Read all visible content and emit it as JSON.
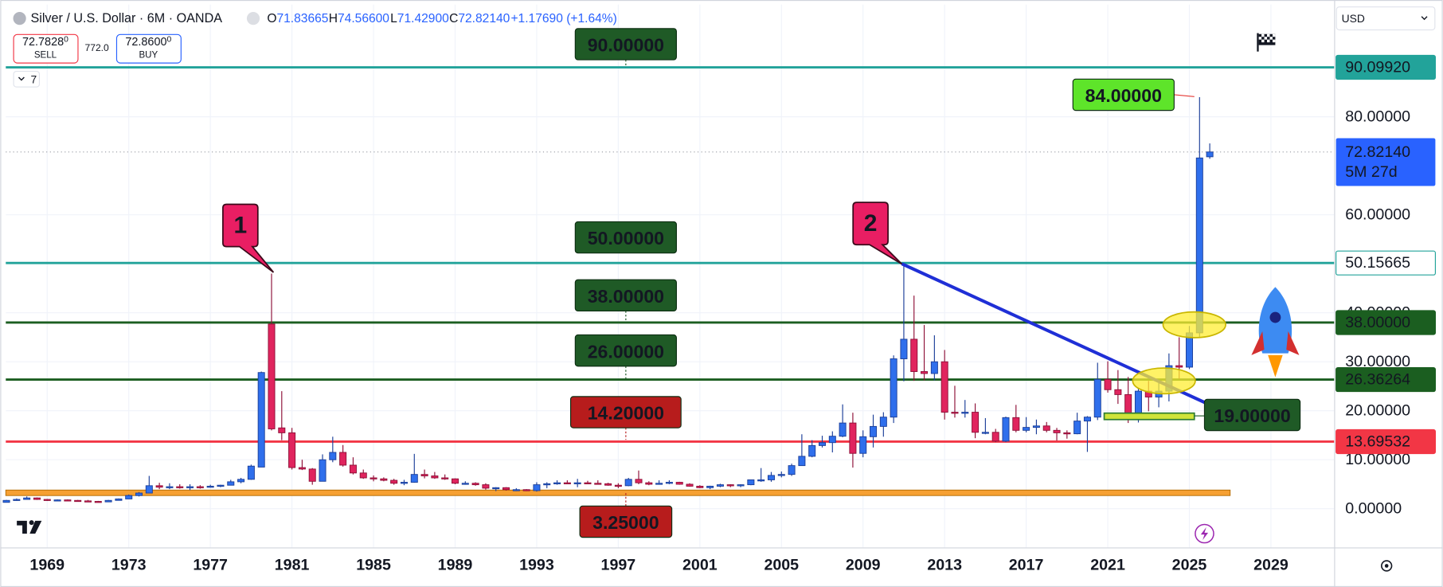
{
  "header": {
    "symbol": "Silver / U.S. Dollar · 6M · OANDA",
    "ohlc": [
      {
        "label": "O",
        "value": "71.83665"
      },
      {
        "label": "H",
        "value": "74.56600"
      },
      {
        "label": "L",
        "value": "71.42900"
      },
      {
        "label": "C",
        "value": "72.82140"
      }
    ],
    "change": "+1.17690 (+1.64%)"
  },
  "trade": {
    "sell": {
      "price": "72.7828",
      "pip": "0",
      "label": "SELL"
    },
    "spread": "772.0",
    "buy": {
      "price": "72.8600",
      "pip": "0",
      "label": "BUY"
    }
  },
  "indicator_count": "7",
  "currency": "USD",
  "chart_data": {
    "type": "candlestick",
    "up_color": "#2f6fec",
    "down_color": "#e0245e",
    "grid": true,
    "xlim": [
      1966.97,
      2032.1
    ],
    "ylim": [
      -7.9,
      102.9
    ],
    "xticks": [
      1969,
      1973,
      1977,
      1981,
      1985,
      1989,
      1993,
      1997,
      2001,
      2005,
      2009,
      2013,
      2017,
      2021,
      2025,
      2029
    ],
    "yticks": [
      {
        "value": 0,
        "label": "0.00000"
      },
      {
        "value": 10,
        "label": "10.00000"
      },
      {
        "value": 20,
        "label": "20.00000"
      },
      {
        "value": 30,
        "label": "30.00000"
      },
      {
        "value": 40,
        "label": "40.00000"
      },
      {
        "value": 60,
        "label": "60.00000"
      },
      {
        "value": 80,
        "label": "80.00000"
      }
    ],
    "x": [
      1967,
      1967.5,
      1968,
      1968.5,
      1969,
      1969.5,
      1970,
      1970.5,
      1971,
      1971.5,
      1972,
      1972.5,
      1973,
      1973.5,
      1974,
      1974.5,
      1975,
      1975.5,
      1976,
      1976.5,
      1977,
      1977.5,
      1978,
      1978.5,
      1979,
      1979.5,
      1980,
      1980.5,
      1981,
      1981.5,
      1982,
      1982.5,
      1983,
      1983.5,
      1984,
      1984.5,
      1985,
      1985.5,
      1986,
      1986.5,
      1987,
      1987.5,
      1988,
      1988.5,
      1989,
      1989.5,
      1990,
      1990.5,
      1991,
      1991.5,
      1992,
      1992.5,
      1993,
      1993.5,
      1994,
      1994.5,
      1995,
      1995.5,
      1996,
      1996.5,
      1997,
      1997.5,
      1998,
      1998.5,
      1999,
      1999.5,
      2000,
      2000.5,
      2001,
      2001.5,
      2002,
      2002.5,
      2003,
      2003.5,
      2004,
      2004.5,
      2005,
      2005.5,
      2006,
      2006.5,
      2007,
      2007.5,
      2008,
      2008.5,
      2009,
      2009.5,
      2010,
      2010.5,
      2011,
      2011.5,
      2012,
      2012.5,
      2013,
      2013.5,
      2014,
      2014.5,
      2015,
      2015.5,
      2016,
      2016.5,
      2017,
      2017.5,
      2018,
      2018.5,
      2019,
      2019.5,
      2020,
      2020.5,
      2021,
      2021.5,
      2022,
      2022.5,
      2023,
      2023.5,
      2024,
      2024.5,
      2025,
      2025.5,
      2026
    ],
    "values": [
      [
        1.3,
        1.8,
        1.3,
        1.7
      ],
      [
        1.7,
        2.1,
        1.6,
        1.9
      ],
      [
        1.9,
        2.5,
        1.9,
        2.2
      ],
      [
        2.2,
        2.3,
        1.8,
        1.9
      ],
      [
        1.9,
        2.0,
        1.6,
        1.7
      ],
      [
        1.7,
        1.9,
        1.6,
        1.8
      ],
      [
        1.8,
        1.9,
        1.6,
        1.7
      ],
      [
        1.7,
        1.8,
        1.5,
        1.6
      ],
      [
        1.6,
        1.8,
        1.4,
        1.5
      ],
      [
        1.5,
        1.6,
        1.3,
        1.4
      ],
      [
        1.4,
        1.8,
        1.4,
        1.7
      ],
      [
        1.7,
        2.1,
        1.7,
        2.0
      ],
      [
        2.0,
        2.9,
        2.0,
        2.7
      ],
      [
        2.7,
        3.4,
        2.5,
        3.2
      ],
      [
        3.2,
        6.7,
        3.2,
        4.7
      ],
      [
        4.7,
        5.3,
        4.0,
        4.4
      ],
      [
        4.4,
        5.2,
        4.0,
        4.5
      ],
      [
        4.5,
        5.0,
        4.1,
        4.3
      ],
      [
        4.3,
        5.0,
        3.8,
        4.5
      ],
      [
        4.5,
        4.8,
        4.1,
        4.4
      ],
      [
        4.4,
        4.9,
        4.3,
        4.6
      ],
      [
        4.6,
        4.9,
        4.4,
        4.8
      ],
      [
        4.8,
        5.9,
        4.8,
        5.5
      ],
      [
        5.5,
        6.3,
        5.2,
        6.0
      ],
      [
        6.0,
        9.0,
        5.9,
        8.7
      ],
      [
        8.5,
        28.0,
        8.5,
        27.8
      ],
      [
        37.7,
        48.0,
        16.0,
        16.3
      ],
      [
        16.5,
        24.0,
        14.0,
        15.5
      ],
      [
        15.5,
        16.5,
        8.0,
        8.4
      ],
      [
        8.4,
        10.0,
        7.9,
        8.1
      ],
      [
        8.1,
        8.3,
        4.9,
        5.6
      ],
      [
        5.6,
        11.1,
        5.6,
        10.0
      ],
      [
        10.0,
        14.7,
        9.5,
        11.5
      ],
      [
        11.5,
        13.0,
        8.6,
        8.9
      ],
      [
        8.9,
        10.5,
        7.0,
        7.3
      ],
      [
        7.3,
        8.0,
        6.1,
        6.3
      ],
      [
        6.3,
        6.8,
        5.6,
        6.1
      ],
      [
        6.1,
        6.4,
        5.6,
        5.8
      ],
      [
        5.8,
        6.1,
        4.9,
        5.2
      ],
      [
        5.2,
        5.9,
        4.8,
        5.4
      ],
      [
        5.4,
        11.2,
        5.3,
        7.0
      ],
      [
        7.0,
        8.0,
        6.2,
        6.7
      ],
      [
        6.7,
        7.5,
        6.1,
        6.3
      ],
      [
        6.3,
        7.0,
        5.9,
        6.1
      ],
      [
        6.1,
        6.2,
        5.0,
        5.2
      ],
      [
        5.2,
        5.6,
        4.9,
        5.2
      ],
      [
        5.2,
        5.4,
        4.7,
        4.9
      ],
      [
        4.9,
        5.2,
        3.9,
        4.2
      ],
      [
        4.2,
        4.4,
        3.6,
        4.3
      ],
      [
        4.3,
        4.4,
        3.7,
        3.9
      ],
      [
        3.9,
        4.2,
        3.6,
        3.9
      ],
      [
        3.9,
        4.0,
        3.6,
        3.7
      ],
      [
        3.7,
        5.4,
        3.5,
        4.9
      ],
      [
        4.9,
        5.4,
        4.2,
        5.1
      ],
      [
        5.1,
        5.8,
        4.9,
        5.3
      ],
      [
        5.3,
        5.8,
        5.0,
        5.2
      ],
      [
        5.2,
        6.1,
        4.4,
        5.3
      ],
      [
        5.3,
        5.7,
        5.0,
        5.2
      ],
      [
        5.2,
        5.8,
        5.0,
        5.1
      ],
      [
        5.1,
        5.3,
        4.7,
        4.8
      ],
      [
        4.8,
        5.2,
        4.2,
        4.7
      ],
      [
        4.7,
        6.3,
        4.6,
        6.0
      ],
      [
        6.0,
        7.8,
        5.0,
        5.3
      ],
      [
        5.3,
        5.6,
        4.8,
        5.0
      ],
      [
        5.0,
        5.8,
        4.9,
        5.2
      ],
      [
        5.2,
        5.8,
        5.0,
        5.4
      ],
      [
        5.4,
        5.5,
        4.9,
        5.0
      ],
      [
        5.0,
        5.2,
        4.5,
        4.6
      ],
      [
        4.6,
        4.8,
        4.2,
        4.3
      ],
      [
        4.3,
        4.7,
        4.0,
        4.6
      ],
      [
        4.6,
        5.1,
        4.4,
        4.9
      ],
      [
        4.9,
        5.0,
        4.4,
        4.7
      ],
      [
        4.7,
        5.0,
        4.4,
        4.9
      ],
      [
        4.9,
        5.9,
        4.8,
        5.9
      ],
      [
        5.9,
        8.3,
        5.5,
        5.9
      ],
      [
        5.9,
        7.5,
        5.5,
        6.8
      ],
      [
        6.8,
        7.6,
        6.4,
        7.0
      ],
      [
        7.0,
        9.2,
        6.7,
        8.8
      ],
      [
        8.8,
        15.2,
        8.8,
        10.7
      ],
      [
        10.7,
        14.0,
        10.5,
        12.9
      ],
      [
        12.9,
        14.9,
        12.5,
        13.5
      ],
      [
        13.5,
        15.8,
        11.5,
        14.8
      ],
      [
        14.8,
        21.3,
        14.6,
        17.5
      ],
      [
        17.5,
        19.6,
        8.4,
        11.3
      ],
      [
        11.3,
        16.0,
        10.5,
        14.7
      ],
      [
        14.7,
        19.2,
        12.5,
        16.8
      ],
      [
        16.8,
        19.7,
        14.7,
        18.7
      ],
      [
        18.7,
        31.3,
        17.5,
        30.6
      ],
      [
        30.6,
        49.8,
        26.0,
        34.6
      ],
      [
        34.6,
        43.5,
        26.1,
        28.0
      ],
      [
        28.0,
        37.5,
        26.2,
        27.6
      ],
      [
        27.6,
        35.4,
        26.2,
        30.0
      ],
      [
        30.0,
        32.4,
        18.2,
        19.7
      ],
      [
        19.7,
        25.1,
        18.6,
        19.5
      ],
      [
        19.5,
        22.2,
        18.6,
        19.7
      ],
      [
        19.7,
        21.5,
        14.4,
        15.6
      ],
      [
        15.6,
        18.5,
        15.2,
        15.6
      ],
      [
        15.6,
        16.3,
        13.6,
        13.8
      ],
      [
        13.8,
        18.8,
        13.6,
        18.6
      ],
      [
        18.6,
        21.2,
        15.6,
        16.0
      ],
      [
        16.0,
        18.7,
        15.6,
        16.6
      ],
      [
        16.6,
        18.2,
        15.2,
        16.9
      ],
      [
        16.9,
        17.7,
        15.6,
        16.0
      ],
      [
        16.0,
        16.5,
        13.9,
        15.5
      ],
      [
        15.5,
        16.0,
        14.3,
        15.3
      ],
      [
        15.3,
        19.6,
        15.2,
        17.9
      ],
      [
        17.9,
        18.9,
        11.6,
        18.7
      ],
      [
        18.7,
        29.8,
        18.1,
        26.4
      ],
      [
        26.4,
        30.1,
        23.7,
        24.3
      ],
      [
        24.3,
        28.3,
        21.4,
        23.3
      ],
      [
        23.3,
        26.9,
        17.5,
        18.8
      ],
      [
        18.8,
        24.6,
        17.6,
        24.0
      ],
      [
        24.0,
        26.1,
        19.9,
        22.8
      ],
      [
        22.8,
        26.1,
        20.7,
        24.0
      ],
      [
        24.0,
        31.7,
        21.9,
        29.2
      ],
      [
        29.2,
        35.0,
        26.5,
        28.9
      ],
      [
        28.9,
        37.3,
        28.5,
        35.9
      ],
      [
        35.9,
        84.0,
        35.0,
        71.6
      ],
      [
        71.83665,
        74.566,
        71.429,
        72.8214
      ]
    ],
    "levels": [
      {
        "value": 90.0992,
        "label": "90.09920",
        "color": "#22a39a",
        "label_bg": "#22a39a",
        "label_color": "#ffffff"
      },
      {
        "value": 50.15665,
        "label": "50.15665",
        "color": "#22a39a",
        "label_bg": "#ffffff",
        "label_color": "#131722"
      },
      {
        "value": 38,
        "label": "38.00000",
        "color": "#1b5e20",
        "label_bg": "#1b5e20",
        "label_color": "#ffffff"
      },
      {
        "value": 26.36264,
        "label": "26.36264",
        "color": "#1b5e20",
        "label_bg": "#1b5e20",
        "label_color": "#ffffff"
      },
      {
        "value": 13.69532,
        "label": "13.69532",
        "color": "#f23645",
        "label_bg": "#f23645",
        "label_color": "#ffffff"
      }
    ],
    "zones": [
      {
        "value": 3.25,
        "color": "#f6a032"
      }
    ],
    "current_price": {
      "value": 72.8214,
      "label": "72.82140",
      "countdown": "5M 27d",
      "color": "#2962ff"
    },
    "trendline": {
      "x": [
        2010.9,
        2025.8
      ],
      "values": [
        50,
        21.6
      ],
      "color": "#1f2fd6"
    },
    "annotations": [
      {
        "text": "90.00000",
        "bg": "#1f5a26",
        "color": "#fff04a"
      },
      {
        "text": "50.00000",
        "bg": "#1f5a26",
        "color": "#fff04a"
      },
      {
        "text": "38.00000",
        "bg": "#1f5a26",
        "color": "#fff04a"
      },
      {
        "text": "26.00000",
        "bg": "#1f5a26",
        "color": "#fff04a"
      },
      {
        "text": "14.20000",
        "bg": "#b71c1c",
        "color": "#ffffff"
      },
      {
        "text": "3.25000",
        "bg": "#b71c1c",
        "color": "#ffffff"
      },
      {
        "text": "84.00000",
        "bg": "#5ee42a",
        "color": "#131722"
      },
      {
        "text": "19.00000",
        "bg": "#1f5a26",
        "color": "#ffffff"
      }
    ],
    "callouts": [
      {
        "text": "1"
      },
      {
        "text": "2"
      }
    ]
  }
}
